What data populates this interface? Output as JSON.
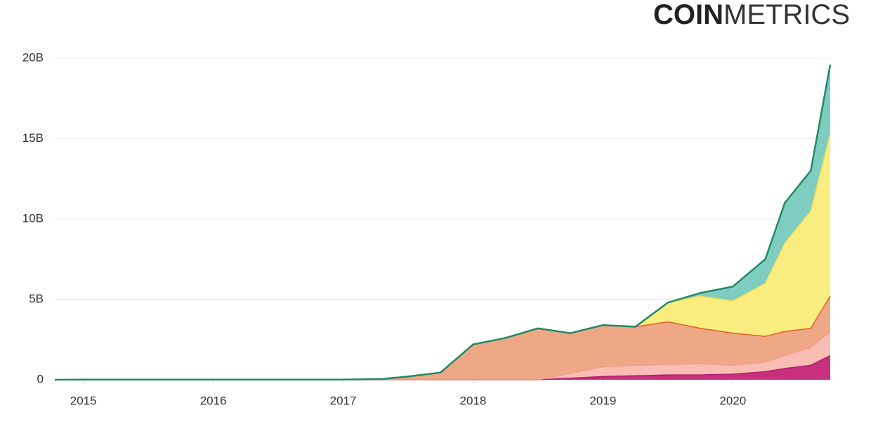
{
  "logo": {
    "bold": "COIN",
    "light": "METRICS"
  },
  "chart_data": {
    "type": "stacked_area",
    "x": [
      2014.78,
      2015,
      2016,
      2017,
      2017.3,
      2017.5,
      2017.75,
      2018,
      2018.25,
      2018.5,
      2018.75,
      2019,
      2019.25,
      2019.5,
      2019.75,
      2020,
      2020.25,
      2020.4,
      2020.6,
      2020.75
    ],
    "xlim": [
      2014.78,
      2020.75
    ],
    "xticks": [
      2015,
      2016,
      2017,
      2018,
      2019,
      2020
    ],
    "ylim": [
      0,
      20000000000
    ],
    "yticks": [
      0,
      {
        "value": 5000000000,
        "label": "5B"
      },
      {
        "value": 10000000000,
        "label": "10B"
      },
      {
        "value": 15000000000,
        "label": "15B"
      },
      {
        "value": 20000000000,
        "label": "20B"
      }
    ],
    "grid": true,
    "series": [
      {
        "color": "#c8307e",
        "line": "#b0206a",
        "values": [
          0,
          0,
          0,
          0,
          0,
          0,
          0,
          0,
          0,
          0,
          100000000.0,
          200000000.0,
          250000000.0,
          300000000.0,
          300000000.0,
          350000000.0,
          500000000.0,
          700000000.0,
          900000000.0,
          1500000000.0
        ]
      },
      {
        "color": "#f9bdb4",
        "line": "#f39b90",
        "values": [
          0,
          0,
          0,
          0,
          0,
          0,
          0,
          0,
          0,
          0,
          300000000.0,
          600000000.0,
          650000000.0,
          650000000.0,
          700000000.0,
          550000000.0,
          600000000.0,
          800000000.0,
          1100000000.0,
          1500000000.0
        ]
      },
      {
        "color": "#eea886",
        "line": "#e0602a",
        "values": [
          0,
          10000000.0,
          10000000.0,
          10000000.0,
          50000000.0,
          200000000.0,
          450000000.0,
          2200000000.0,
          2600000000.0,
          3200000000.0,
          2500000000.0,
          2600000000.0,
          2400000000.0,
          2650000000.0,
          2200000000.0,
          2000000000.0,
          1600000000.0,
          1500000000.0,
          1200000000.0,
          2200000000.0
        ]
      },
      {
        "color": "#f9ed80",
        "line": "#f2dc50",
        "values": [
          0,
          0,
          0,
          0,
          0,
          0,
          0,
          0,
          0,
          0,
          0,
          0,
          0,
          1200000000.0,
          2000000000.0,
          2000000000.0,
          3300000000.0,
          5500000000.0,
          7300000000.0,
          10100000000.0
        ]
      },
      {
        "color": "#7fcdc0",
        "line": "#1f8a64",
        "values": [
          0,
          0,
          0,
          0,
          0,
          0,
          0,
          0,
          0,
          0,
          0,
          0,
          0,
          0,
          200000000.0,
          900000000.0,
          1500000000.0,
          2500000000.0,
          2500000000.0,
          4300000000.0
        ]
      }
    ]
  }
}
